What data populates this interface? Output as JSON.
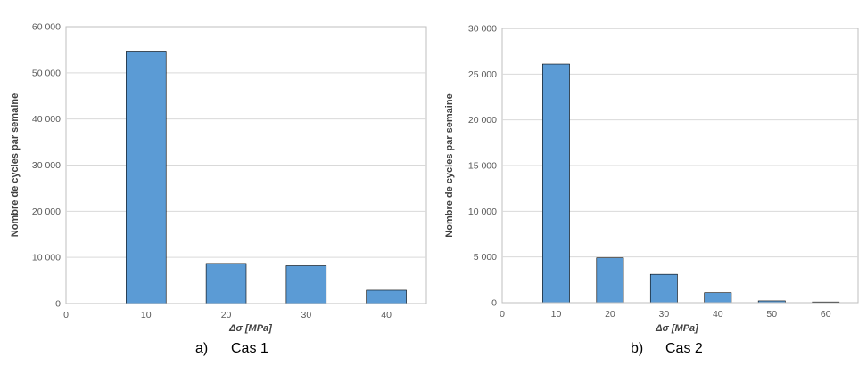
{
  "chart_data": [
    {
      "type": "bar",
      "caption_letter": "a)",
      "caption_text": "Cas 1",
      "xlabel": "Δσ [MPa]",
      "ylabel": "Nombre de cycles par semaine",
      "x": [
        10,
        20,
        30,
        40
      ],
      "values": [
        54700,
        8700,
        8200,
        2900
      ],
      "bar_width": 5,
      "xlim": [
        0,
        45
      ],
      "ylim": [
        0,
        60000
      ],
      "xticks": [
        0,
        10,
        20,
        30,
        40
      ],
      "xtick_labels": [
        "0",
        "10",
        "20",
        "30",
        "40"
      ],
      "yticks": [
        0,
        10000,
        20000,
        30000,
        40000,
        50000,
        60000
      ],
      "ytick_labels": [
        "0",
        "10 000",
        "20 000",
        "30 000",
        "40 000",
        "50 000",
        "60 000"
      ],
      "grid": true,
      "colors": {
        "bar": "#5b9bd5",
        "bar_edge": "#000000",
        "grid": "#d9d9d9"
      }
    },
    {
      "type": "bar",
      "caption_letter": "b)",
      "caption_text": "Cas 2",
      "xlabel": "Δσ [MPa]",
      "ylabel": "Nombre de cycles par semaine",
      "x": [
        10,
        20,
        30,
        40,
        50,
        60
      ],
      "values": [
        26100,
        4900,
        3100,
        1100,
        200,
        80
      ],
      "bar_width": 5,
      "xlim": [
        0,
        66
      ],
      "ylim": [
        0,
        30000
      ],
      "xticks": [
        0,
        10,
        20,
        30,
        40,
        50,
        60
      ],
      "xtick_labels": [
        "0",
        "10",
        "20",
        "30",
        "40",
        "50",
        "60"
      ],
      "yticks": [
        0,
        5000,
        10000,
        15000,
        20000,
        25000,
        30000
      ],
      "ytick_labels": [
        "0",
        "5 000",
        "10 000",
        "15 000",
        "20 000",
        "25 000",
        "30 000"
      ],
      "grid": true,
      "colors": {
        "bar": "#5b9bd5",
        "bar_edge": "#000000",
        "grid": "#d9d9d9"
      }
    }
  ]
}
